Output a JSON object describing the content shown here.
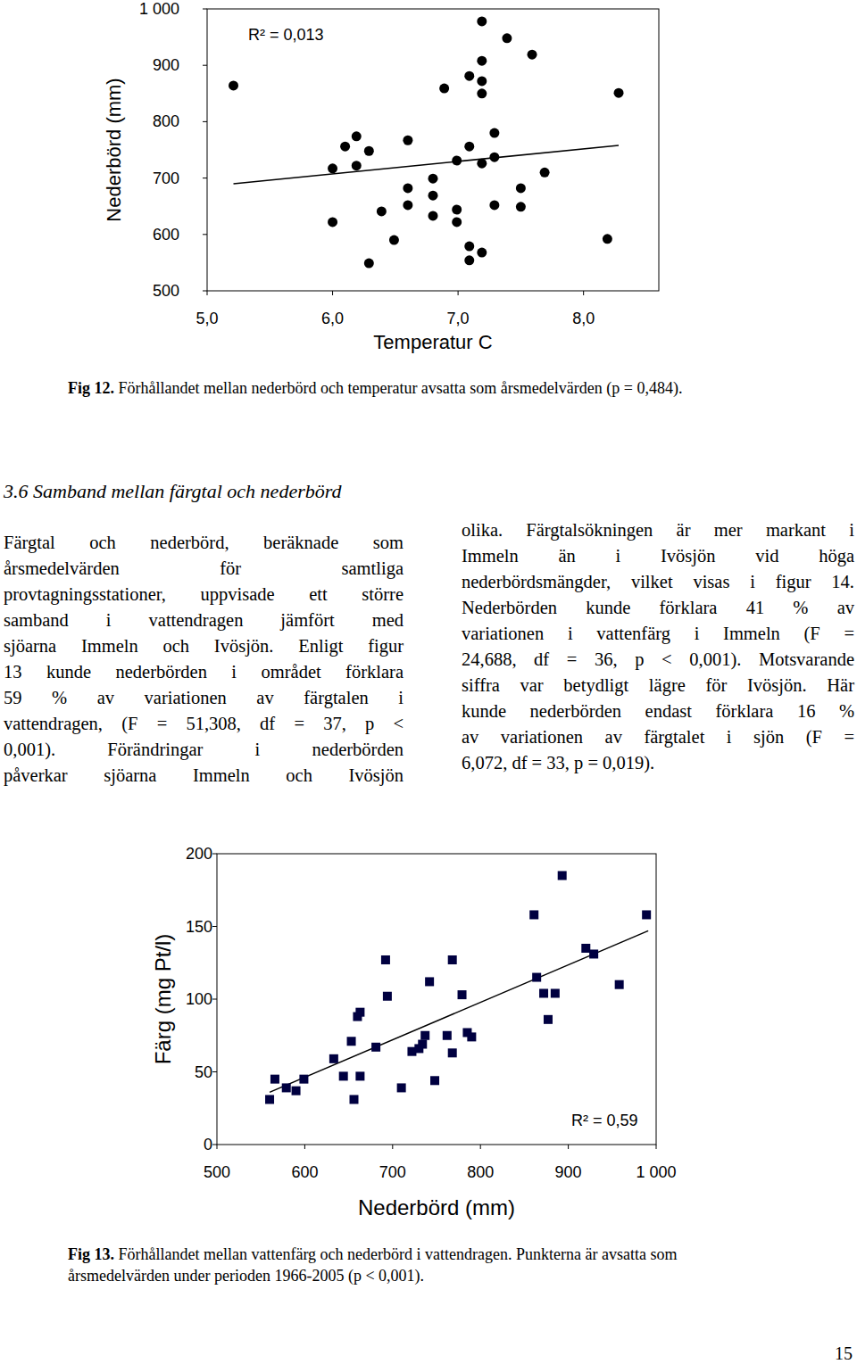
{
  "chart_data": [
    {
      "type": "scatter",
      "y_label": "Nederbörd (mm)",
      "x_label": "Temperatur C",
      "annotations": [
        "R² = 0,013"
      ],
      "marker": "circle",
      "color": "#000000",
      "grid": false,
      "xlim": [
        5.0,
        8.6
      ],
      "ylim": [
        500,
        1000
      ],
      "xticks": [
        {
          "value": 5,
          "label": "5,0"
        },
        {
          "value": 6,
          "label": "6,0"
        },
        {
          "value": 7,
          "label": "7,0"
        },
        {
          "value": 8,
          "label": "8,0"
        }
      ],
      "yticks": [
        {
          "value": 1000,
          "label": "1 000"
        },
        900,
        800,
        700,
        600,
        500
      ],
      "x": [
        5.21,
        6.0,
        6.0,
        6.1,
        6.19,
        6.19,
        6.29,
        6.29,
        6.39,
        6.49,
        6.6,
        6.6,
        6.6,
        6.8,
        6.8,
        6.8,
        6.89,
        6.99,
        6.99,
        6.99,
        7.09,
        7.09,
        7.09,
        7.09,
        7.19,
        7.19,
        7.19,
        7.19,
        7.19,
        7.19,
        7.29,
        7.29,
        7.29,
        7.39,
        7.5,
        7.5,
        7.59,
        7.69,
        8.19,
        8.28
      ],
      "values": [
        864,
        622,
        717,
        756,
        774,
        722,
        748,
        549,
        641,
        590,
        767,
        682,
        652,
        699,
        669,
        633,
        859,
        731,
        644,
        622,
        756,
        579,
        554,
        881,
        978,
        908,
        872,
        850,
        726,
        568,
        780,
        737,
        652,
        948,
        682,
        649,
        919,
        710,
        592,
        851
      ],
      "trendline": {
        "x": [
          5.21,
          8.28
        ],
        "values": [
          690,
          758
        ]
      }
    },
    {
      "type": "scatter",
      "y_label": "Färg (mg Pt/l)",
      "x_label": "Nederbörd (mm)",
      "annotations": [
        "R² = 0,59"
      ],
      "marker": "square",
      "color": "#000040",
      "grid": false,
      "xlim": [
        500,
        1000
      ],
      "ylim": [
        0,
        200
      ],
      "xticks": [
        500,
        600,
        700,
        800,
        900,
        {
          "value": 1000,
          "label": "1 000"
        }
      ],
      "yticks": [
        200,
        150,
        100,
        50,
        0
      ],
      "x": [
        560,
        566,
        579,
        590,
        599,
        633,
        644,
        653,
        656,
        660,
        663,
        663,
        681,
        692,
        694,
        710,
        722,
        730,
        734,
        737,
        742,
        748,
        762,
        768,
        768,
        779,
        785,
        790,
        861,
        864,
        872,
        877,
        885,
        893,
        920,
        929,
        958,
        989
      ],
      "values": [
        31,
        45,
        39,
        37,
        45,
        59,
        47,
        71,
        31,
        88,
        91,
        47,
        67,
        127,
        102,
        39,
        64,
        66,
        69,
        75,
        112,
        44,
        75,
        63,
        127,
        103,
        77,
        74,
        158,
        115,
        104,
        86,
        104,
        185,
        135,
        131,
        110,
        158
      ],
      "trendline": {
        "x": [
          560,
          991
        ],
        "values": [
          36,
          147
        ]
      }
    }
  ],
  "document": {
    "heading": "3.6 Samband mellan färgtal och nederbörd",
    "columns": [
      [
        "Färgtal och nederbörd, beräknade som",
        "årsmedelvärden för samtliga",
        "provtagningsstationer, uppvisade ett större",
        "samband i vattendragen jämfört med",
        "sjöarna Immeln och Ivösjön. Enligt figur",
        "13 kunde nederbörden i området förklara",
        "59 % av variationen av färgtalen i",
        "vattendragen, (F = 51,308, df = 37, p <",
        "0,001). Förändringar i nederbörden",
        "påverkar sjöarna Immeln och Ivösjön"
      ],
      [
        "olika. Färgtalsökningen är mer markant i",
        "Immeln än i Ivösjön vid höga",
        "nederbördsmängder, vilket visas i figur 14.",
        "Nederbörden kunde förklara 41 % av",
        "variationen i vattenfärg i Immeln (F =",
        "24,688, df = 36, p < 0,001). Motsvarande",
        "siffra var betydligt lägre för Ivösjön. Här",
        "kunde nederbörden endast förklara 16 %",
        "av variationen av färgtalet i sjön (F =",
        "6,072, df = 33, p = 0,019)."
      ]
    ],
    "captions": [
      {
        "label": "Fig 12.",
        "lines": [
          "Förhållandet mellan nederbörd och temperatur avsatta som årsmedelvärden (p = 0,484)."
        ]
      },
      {
        "label": "Fig 13.",
        "lines": [
          "Förhållandet mellan vattenfärg och nederbörd i vattendragen. Punkterna är avsatta som",
          "årsmedelvärden under perioden 1966-2005 (p < 0,001)."
        ]
      }
    ],
    "page_number": "15"
  }
}
